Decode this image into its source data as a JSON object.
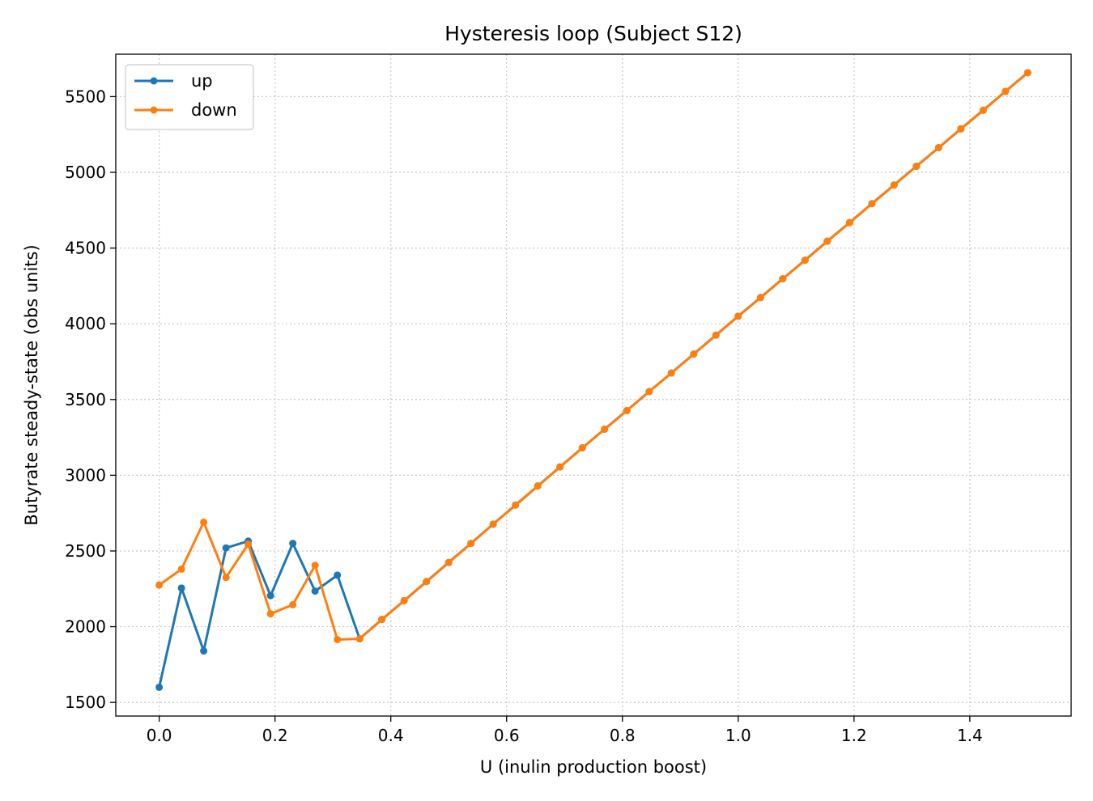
{
  "chart_data": {
    "type": "line",
    "title": "Hysteresis loop (Subject S12)",
    "xlabel": "U (inulin production boost)",
    "ylabel": "Butyrate steady-state (obs units)",
    "xlim": [
      -0.075,
      1.575
    ],
    "ylim": [
      1410,
      5780
    ],
    "xticks": [
      0.0,
      0.2,
      0.4,
      0.6,
      0.8,
      1.0,
      1.2,
      1.4
    ],
    "xtick_labels": [
      "0.0",
      "0.2",
      "0.4",
      "0.6",
      "0.8",
      "1.0",
      "1.2",
      "1.4"
    ],
    "yticks": [
      1500,
      2000,
      2500,
      3000,
      3500,
      4000,
      4500,
      5000,
      5500
    ],
    "ytick_labels": [
      "1500",
      "2000",
      "2500",
      "3000",
      "3500",
      "4000",
      "4500",
      "5000",
      "5500"
    ],
    "grid": true,
    "legend_position": "top-left",
    "x": [
      0.0,
      0.0385,
      0.0769,
      0.1154,
      0.1538,
      0.1923,
      0.2308,
      0.2692,
      0.3077,
      0.3462,
      0.3846,
      0.4231,
      0.4615,
      0.5,
      0.5385,
      0.5769,
      0.6154,
      0.6538,
      0.6923,
      0.7308,
      0.7692,
      0.8077,
      0.8462,
      0.8846,
      0.9231,
      0.9615,
      1.0,
      1.0385,
      1.0769,
      1.1154,
      1.1538,
      1.1923,
      1.2308,
      1.2692,
      1.3077,
      1.3462,
      1.3846,
      1.4231,
      1.4615,
      1.5
    ],
    "series": [
      {
        "name": "up",
        "color": "#1f77b4",
        "values": [
          1600,
          2255,
          1840,
          2520,
          2565,
          2205,
          2550,
          2235,
          2340,
          1920,
          2048,
          2172,
          2298,
          2424,
          2550,
          2677,
          2803,
          2929,
          3055,
          3181,
          3304,
          3427,
          3552,
          3675,
          3800,
          3925,
          4050,
          4173,
          4297,
          4420,
          4545,
          4668,
          4793,
          4916,
          5040,
          5163,
          5287,
          5410,
          5534,
          5658
        ]
      },
      {
        "name": "down",
        "color": "#ff7f0e",
        "values": [
          2275,
          2380,
          2690,
          2325,
          2545,
          2085,
          2145,
          2405,
          1915,
          1920,
          2048,
          2172,
          2298,
          2424,
          2550,
          2677,
          2803,
          2929,
          3055,
          3181,
          3304,
          3427,
          3552,
          3675,
          3800,
          3925,
          4050,
          4173,
          4297,
          4420,
          4545,
          4668,
          4793,
          4916,
          5040,
          5163,
          5287,
          5410,
          5534,
          5658
        ]
      }
    ]
  }
}
